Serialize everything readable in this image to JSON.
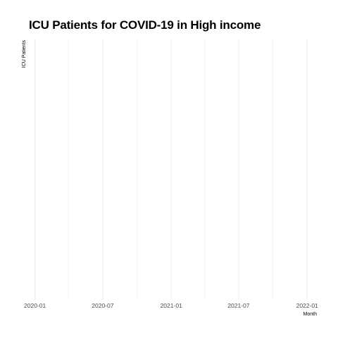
{
  "chart_data": {
    "type": "line",
    "title": "ICU Patients for COVID-19 in High income",
    "xlabel": "Month",
    "ylabel": "ICU Patients",
    "x_ticks": [
      "2020-01",
      "2020-07",
      "2021-01",
      "2021-07",
      "2022-01"
    ],
    "x_tick_dates": [
      "2020-01-01",
      "2020-07-01",
      "2021-01-01",
      "2021-07-01",
      "2022-01-01"
    ],
    "xlim": [
      "2019-12-10",
      "2022-02-15"
    ],
    "series": [],
    "grid": true,
    "legend": "none",
    "colors": {
      "grid": "#ebebeb",
      "text": "#000000",
      "tick_text": "#4d4d4d"
    }
  }
}
